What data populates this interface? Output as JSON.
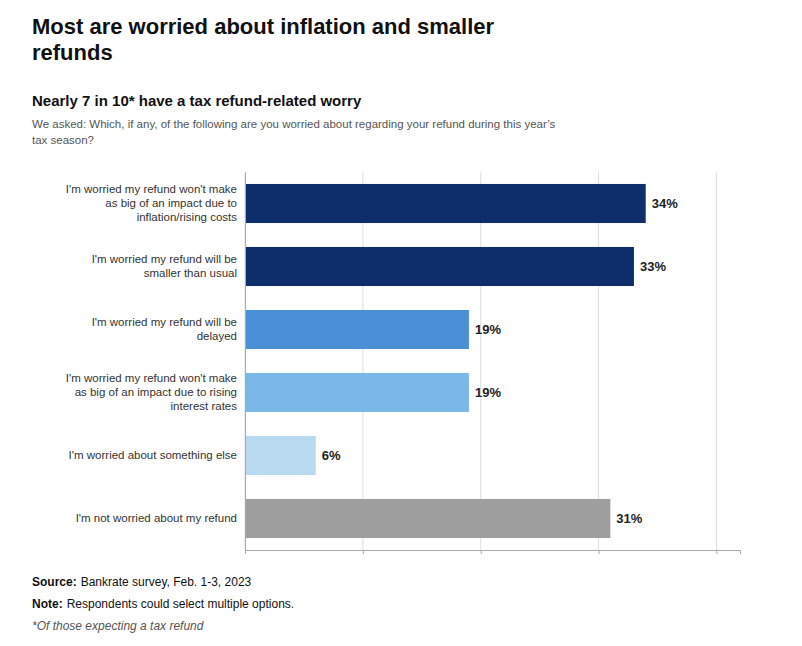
{
  "chart_data": {
    "type": "bar",
    "orientation": "horizontal",
    "title": "Most are worried about inflation and smaller\nrefunds",
    "subtitle": "Nearly 7 in 10* have a tax refund-related worry",
    "question": "We asked: Which, if any, of the following are you worried about regarding your refund during this year’s\ntax season?",
    "categories": [
      "I'm worried my refund won't make\nas big of an impact due to\ninflation/rising costs",
      "I'm worried my refund will be\nsmaller than usual",
      "I'm worried my refund will be\ndelayed",
      "I'm worried my refund won't make\nas big of an impact due to rising\ninterest rates",
      "I'm worried about something else",
      "I'm not worried about my refund"
    ],
    "values": [
      34,
      33,
      19,
      19,
      6,
      31
    ],
    "value_labels": [
      "34%",
      "33%",
      "19%",
      "19%",
      "6%",
      "31%"
    ],
    "colors": [
      "#0d2d6b",
      "#0d2d6b",
      "#4a90d9",
      "#7ab8e8",
      "#b8d9f0",
      "#9e9e9e"
    ],
    "data_labels": true,
    "xlim": [
      0,
      42
    ],
    "xticks": [
      0,
      10,
      20,
      30,
      40
    ],
    "grid": true,
    "tick_labels": "y",
    "source_label": "Source:",
    "source": "Bankrate survey, Feb. 1-3, 2023",
    "note_label": "Note:",
    "note": "Respondents could select multiple options.",
    "footnote": "*Of those expecting a tax refund"
  }
}
